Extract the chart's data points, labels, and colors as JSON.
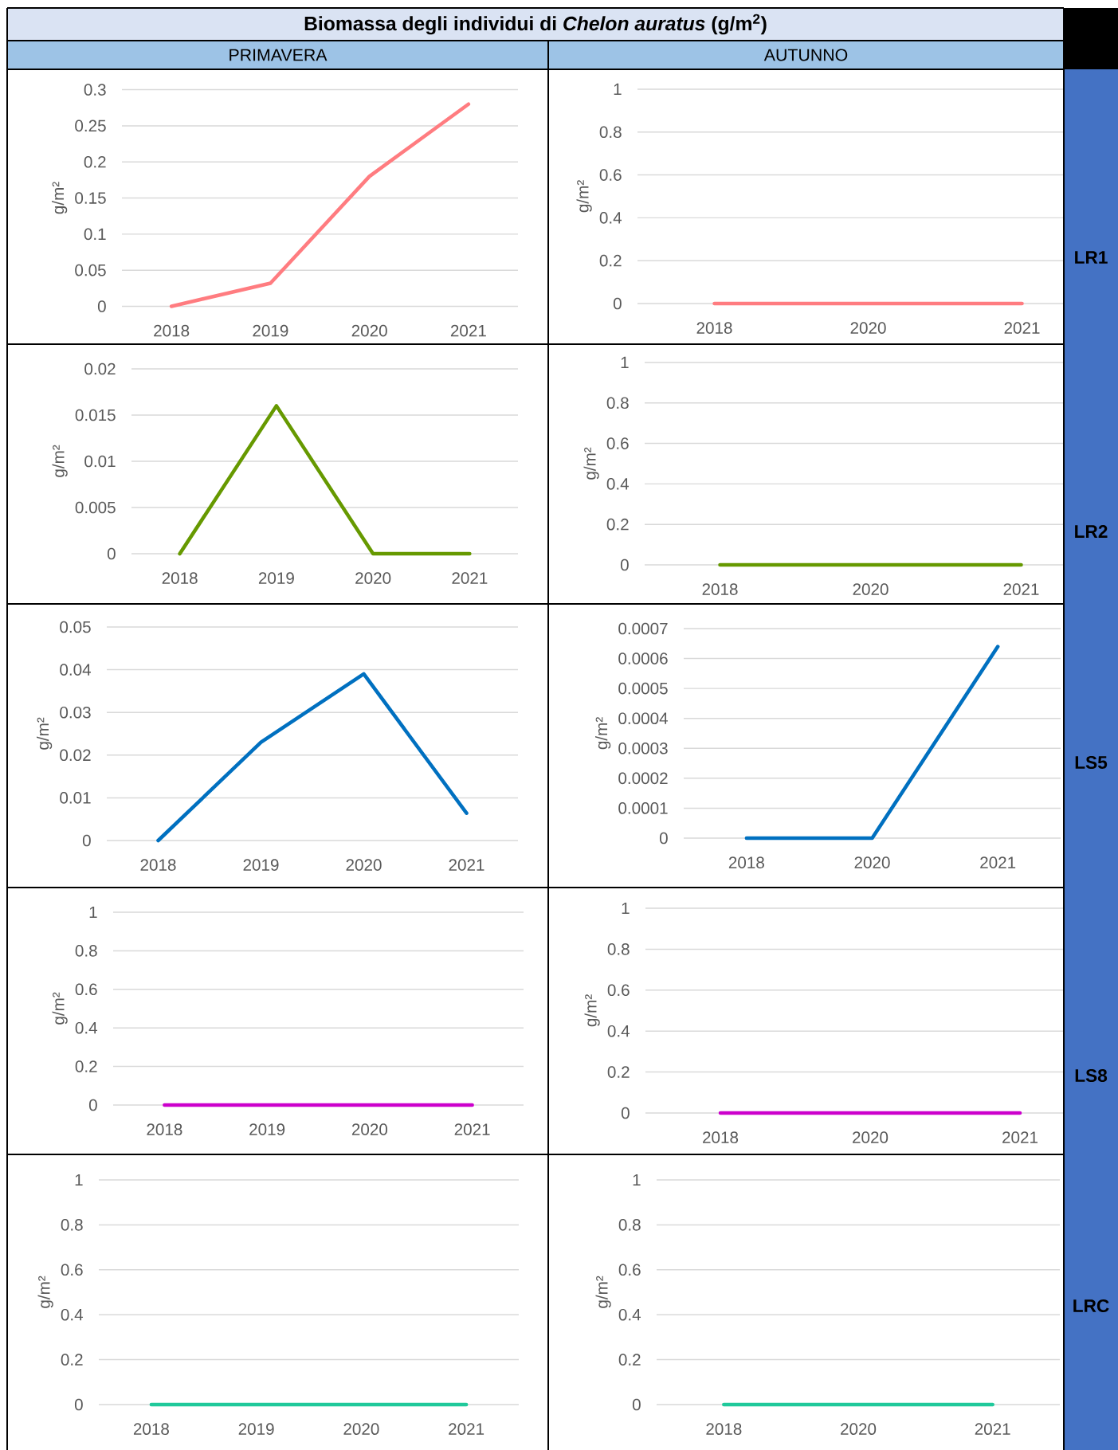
{
  "chart_data": [
    {
      "type": "line",
      "title": "Biomassa degli individui di *Chelon auratus* (g/m$^{2}$)",
      "subtitle": "PRIMAVERA",
      "categories": [
        "2018",
        "2019",
        "2020",
        "2021"
      ],
      "series": [
        {
          "color": "#ff7c80",
          "values": [
            0,
            0.032,
            0.18,
            0.28
          ]
        }
      ],
      "ylabel": "g/m²",
      "ylim": [
        0,
        0.3
      ],
      "yticks": [
        0,
        0.05,
        0.1,
        0.15,
        0.2,
        0.25,
        0.3
      ],
      "grid": "y"
    },
    {
      "type": "line",
      "subtitle": "AUTUNNO",
      "categories": [
        "2018",
        "2020",
        "2021"
      ],
      "series": [
        {
          "color": "#ff7c80",
          "values": [
            0,
            0,
            0
          ]
        }
      ],
      "ylabel": "g/m²",
      "ylim": [
        0,
        1
      ],
      "yticks": [
        0,
        0.2,
        0.4,
        0.6,
        0.8,
        1
      ],
      "grid": "y",
      "annotations": [
        "LR1"
      ]
    },
    {
      "type": "line",
      "categories": [
        "2018",
        "2019",
        "2020",
        "2021"
      ],
      "series": [
        {
          "color": "#669900",
          "values": [
            0,
            0.016,
            0,
            0
          ]
        }
      ],
      "ylabel": "g/m²",
      "ylim": [
        0,
        0.02
      ],
      "yticks": [
        0,
        0.005,
        0.01,
        0.015,
        0.02
      ],
      "grid": "y"
    },
    {
      "type": "line",
      "categories": [
        "2018",
        "2020",
        "2021"
      ],
      "series": [
        {
          "color": "#669900",
          "values": [
            0,
            0,
            0
          ]
        }
      ],
      "ylabel": "g/m²",
      "ylim": [
        0,
        1
      ],
      "yticks": [
        0,
        0.2,
        0.4,
        0.6,
        0.8,
        1
      ],
      "grid": "y",
      "annotations": [
        "LR2"
      ]
    },
    {
      "type": "line",
      "categories": [
        "2018",
        "2019",
        "2020",
        "2021"
      ],
      "series": [
        {
          "color": "#0070c0",
          "values": [
            0,
            0.023,
            0.039,
            0.0064
          ]
        }
      ],
      "ylabel": "g/m²",
      "ylim": [
        0,
        0.05
      ],
      "yticks": [
        0,
        0.01,
        0.02,
        0.03,
        0.04,
        0.05
      ],
      "grid": "y"
    },
    {
      "type": "line",
      "categories": [
        "2018",
        "2020",
        "2021"
      ],
      "series": [
        {
          "color": "#0070c0",
          "values": [
            0,
            0,
            0.00064
          ]
        }
      ],
      "ylabel": "g/m²",
      "ylim": [
        0,
        0.0007
      ],
      "yticks": [
        0,
        0.0001,
        0.0002,
        0.0003,
        0.0004,
        0.0005,
        0.0006,
        0.0007
      ],
      "grid": "y",
      "annotations": [
        "LS5"
      ]
    },
    {
      "type": "line",
      "categories": [
        "2018",
        "2019",
        "2020",
        "2021"
      ],
      "series": [
        {
          "color": "#cc00cc",
          "values": [
            0,
            0,
            0,
            0
          ]
        }
      ],
      "ylabel": "g/m²",
      "ylim": [
        0,
        1
      ],
      "yticks": [
        0,
        0.2,
        0.4,
        0.6,
        0.8,
        1
      ],
      "grid": "y"
    },
    {
      "type": "line",
      "categories": [
        "2018",
        "2020",
        "2021"
      ],
      "series": [
        {
          "color": "#cc00cc",
          "values": [
            0,
            0,
            0
          ]
        }
      ],
      "ylabel": "g/m²",
      "ylim": [
        0,
        1
      ],
      "yticks": [
        0,
        0.2,
        0.4,
        0.6,
        0.8,
        1
      ],
      "grid": "y",
      "annotations": [
        "LS8"
      ]
    },
    {
      "type": "line",
      "categories": [
        "2018",
        "2019",
        "2020",
        "2021"
      ],
      "series": [
        {
          "color": "#20c99b",
          "values": [
            0,
            0,
            0,
            0
          ]
        }
      ],
      "ylabel": "g/m²",
      "ylim": [
        0,
        1
      ],
      "yticks": [
        0,
        0.2,
        0.4,
        0.6,
        0.8,
        1
      ],
      "grid": "y"
    },
    {
      "type": "line",
      "categories": [
        "2018",
        "2020",
        "2021"
      ],
      "series": [
        {
          "color": "#20c99b",
          "values": [
            0,
            0,
            0
          ]
        }
      ],
      "ylabel": "g/m²",
      "ylim": [
        0,
        1
      ],
      "yticks": [
        0,
        0.2,
        0.4,
        0.6,
        0.8,
        1
      ],
      "grid": "y",
      "annotations": [
        "LRC"
      ]
    }
  ]
}
